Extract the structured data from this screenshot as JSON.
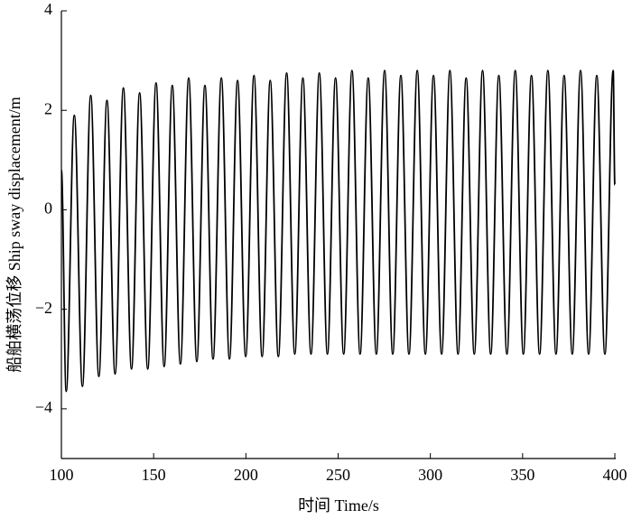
{
  "chart_data": {
    "type": "line",
    "xlabel": "时间 Time/s",
    "ylabel": "船舶横荡位移 Ship sway displacement/m",
    "xlim": [
      100,
      400
    ],
    "xticks": [
      100,
      150,
      200,
      250,
      300,
      350,
      400
    ],
    "ylim": [
      -5,
      4
    ],
    "yticks": [
      {
        "value": -4,
        "label": "−4"
      },
      {
        "value": -2,
        "label": "−2"
      },
      0,
      2,
      4
    ],
    "series": [
      {
        "color": "#000000",
        "x": [
          100,
          102.6,
          107,
          111.4,
          115.9,
          120.3,
          124.7,
          129.1,
          133.6,
          138,
          142.4,
          146.8,
          151.3,
          155.7,
          160.1,
          164.5,
          169,
          173.4,
          177.8,
          182.2,
          186.7,
          191.1,
          195.5,
          199.9,
          204.4,
          208.8,
          213.2,
          217.6,
          222.1,
          226.5,
          230.9,
          235.3,
          239.8,
          244.2,
          248.6,
          253,
          257.5,
          261.9,
          266.3,
          270.7,
          275.2,
          279.6,
          284,
          288.4,
          292.9,
          297.3,
          301.7,
          306.1,
          310.6,
          315,
          319.4,
          323.8,
          328.3,
          332.7,
          337.1,
          341.5,
          346,
          350.4,
          354.8,
          359.2,
          363.7,
          368.1,
          372.5,
          376.9,
          381.4,
          385.8,
          390.2,
          394.6,
          399.1,
          400
        ],
        "values": [
          0.8,
          -3.65,
          1.9,
          -3.55,
          2.3,
          -3.35,
          2.2,
          -3.3,
          2.45,
          -3.2,
          2.35,
          -3.2,
          2.55,
          -3.15,
          2.5,
          -3.1,
          2.65,
          -3.05,
          2.5,
          -3.0,
          2.65,
          -3.0,
          2.6,
          -2.95,
          2.7,
          -2.95,
          2.6,
          -2.95,
          2.75,
          -2.9,
          2.65,
          -2.9,
          2.75,
          -2.9,
          2.65,
          -2.9,
          2.8,
          -2.9,
          2.65,
          -2.9,
          2.8,
          -2.9,
          2.7,
          -2.9,
          2.8,
          -2.9,
          2.7,
          -2.9,
          2.8,
          -2.9,
          2.65,
          -2.9,
          2.8,
          -2.9,
          2.7,
          -2.9,
          2.8,
          -2.9,
          2.7,
          -2.9,
          2.8,
          -2.9,
          2.7,
          -2.9,
          2.8,
          -2.9,
          2.7,
          -2.9,
          2.8,
          0.5
        ]
      }
    ]
  }
}
